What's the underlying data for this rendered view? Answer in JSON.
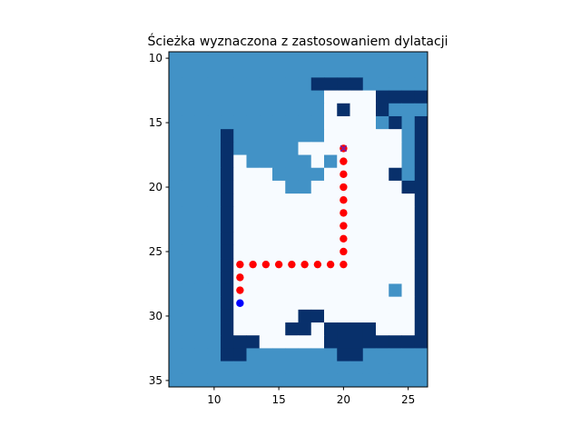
{
  "chart_data": {
    "type": "heatmap",
    "title": "Ścieżka wyznaczona z zastosowaniem dylatacji",
    "xlabel": "",
    "ylabel": "",
    "xlim": [
      6.5,
      26.5
    ],
    "ylim": [
      35.5,
      9.5
    ],
    "x_ticks": [
      10,
      15,
      20,
      25
    ],
    "y_ticks": [
      10,
      15,
      20,
      25,
      30,
      35
    ],
    "grid": false,
    "legend": "none",
    "colormap": "Blues",
    "colors": {
      "free": "#f7fbff",
      "dilated": "#4292c6",
      "obstacle": "#08306b",
      "path": "#ff0000",
      "start": "#0000ff",
      "goal": "#ff0000"
    },
    "grid_extent": {
      "x_min": 7,
      "x_max": 26,
      "y_min": 10,
      "y_max": 35
    },
    "legend_codes": {
      "0": "free",
      "1": "dilated",
      "2": "obstacle"
    },
    "grid_cells": [
      "11111111111111111111",
      "11111111111111111111",
      "11111111111222211111",
      "11111111111100002222",
      "11111111111102002111",
      "11111111111100001212",
      "11112111111100000012",
      "11112111110000000012",
      "11112011111010000012",
      "11112000111100000212",
      "11112000011000000022",
      "11112000000000000002",
      "11112000000000000002",
      "11112000000000000002",
      "11112000000000000002",
      "11112000000000000002",
      "11112000000000000002",
      "11112000000000000002",
      "11112000000000000102",
      "11112000000000000002",
      "11112000002200000002",
      "11112000022022220002",
      "11112220000022222222",
      "11112211111112211111",
      "11111111111111111111",
      "11111111111111111111"
    ],
    "path": {
      "x": [
        20,
        20,
        20,
        20,
        20,
        20,
        20,
        20,
        20,
        20,
        19,
        18,
        17,
        16,
        15,
        14,
        13,
        12,
        12,
        12
      ],
      "y": [
        17,
        18,
        19,
        20,
        21,
        22,
        23,
        24,
        25,
        26,
        26,
        26,
        26,
        26,
        26,
        26,
        26,
        26,
        27,
        28
      ]
    },
    "start": {
      "x": 12,
      "y": 29
    },
    "goal": {
      "x": 20,
      "y": 17
    }
  }
}
